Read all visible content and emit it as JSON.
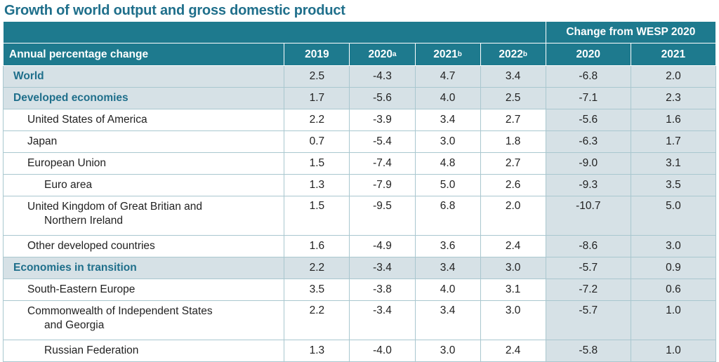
{
  "title": "Growth of world output and gross domestic product",
  "header": {
    "row_label": "Annual percentage change",
    "group_label": "Change from WESP 2020",
    "columns": [
      {
        "label": "2019",
        "sup": ""
      },
      {
        "label": "2020",
        "sup": "a"
      },
      {
        "label": "2021",
        "sup": "b"
      },
      {
        "label": "2022",
        "sup": "b"
      }
    ],
    "change_columns": [
      "2020",
      "2021"
    ]
  },
  "rows": [
    {
      "label": "World",
      "level": 0,
      "highlight": true,
      "values": [
        "2.5",
        "-4.3",
        "4.7",
        "3.4"
      ],
      "changes": [
        "-6.8",
        "2.0"
      ]
    },
    {
      "label": "Developed economies",
      "level": 0,
      "highlight": true,
      "values": [
        "1.7",
        "-5.6",
        "4.0",
        "2.5"
      ],
      "changes": [
        "-7.1",
        "2.3"
      ]
    },
    {
      "label": "United States of America",
      "level": 1,
      "values": [
        "2.2",
        "-3.9",
        "3.4",
        "2.7"
      ],
      "changes": [
        "-5.6",
        "1.6"
      ]
    },
    {
      "label": "Japan",
      "level": 1,
      "values": [
        "0.7",
        "-5.4",
        "3.0",
        "1.8"
      ],
      "changes": [
        "-6.3",
        "1.7"
      ]
    },
    {
      "label": "European Union",
      "level": 1,
      "values": [
        "1.5",
        "-7.4",
        "4.8",
        "2.7"
      ],
      "changes": [
        "-9.0",
        "3.1"
      ]
    },
    {
      "label": "Euro area",
      "level": 2,
      "values": [
        "1.3",
        "-7.9",
        "5.0",
        "2.6"
      ],
      "changes": [
        "-9.3",
        "3.5"
      ]
    },
    {
      "label": "United Kingdom of Great Britian and",
      "label_cont": "Northern Ireland",
      "level": 1,
      "values": [
        "1.5",
        "-9.5",
        "6.8",
        "2.0"
      ],
      "changes": [
        "-10.7",
        "5.0"
      ]
    },
    {
      "label": "Other developed countries",
      "level": 1,
      "values": [
        "1.6",
        "-4.9",
        "3.6",
        "2.4"
      ],
      "changes": [
        "-8.6",
        "3.0"
      ]
    },
    {
      "label": "Economies in transition",
      "level": 0,
      "highlight": true,
      "values": [
        "2.2",
        "-3.4",
        "3.4",
        "3.0"
      ],
      "changes": [
        "-5.7",
        "0.9"
      ]
    },
    {
      "label": "South-Eastern Europe",
      "level": 1,
      "values": [
        "3.5",
        "-3.8",
        "4.0",
        "3.1"
      ],
      "changes": [
        "-7.2",
        "0.6"
      ]
    },
    {
      "label": "Commonwealth of Independent States",
      "label_cont": "and Georgia",
      "level": 1,
      "values": [
        "2.2",
        "-3.4",
        "3.4",
        "3.0"
      ],
      "changes": [
        "-5.7",
        "1.0"
      ]
    },
    {
      "label": "Russian Federation",
      "level": 2,
      "values": [
        "1.3",
        "-4.0",
        "3.0",
        "2.4"
      ],
      "changes": [
        "-5.8",
        "1.0"
      ]
    }
  ]
}
